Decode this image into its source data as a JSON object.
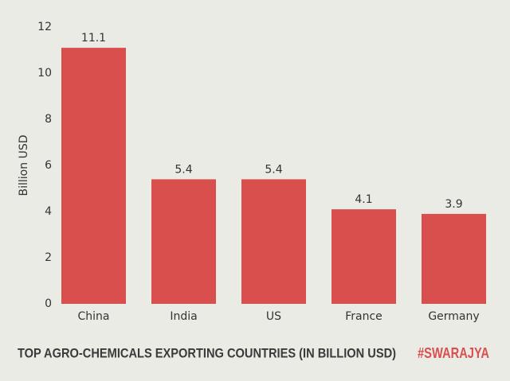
{
  "chart_data": {
    "type": "bar",
    "title": "TOP AGRO-CHEMICALS EXPORTING COUNTRIES (IN BILLION USD)",
    "annotation": "#SWARAJYA",
    "y_label": "Billion USD",
    "categories": [
      "China",
      "India",
      "US",
      "France",
      "Germany"
    ],
    "values": [
      11.1,
      5.4,
      5.4,
      4.1,
      3.9
    ],
    "color": "#d94f4d",
    "ylim": [
      0,
      12
    ],
    "yticks": [
      0,
      2,
      4,
      6,
      8,
      10,
      12
    ],
    "grid": false
  }
}
